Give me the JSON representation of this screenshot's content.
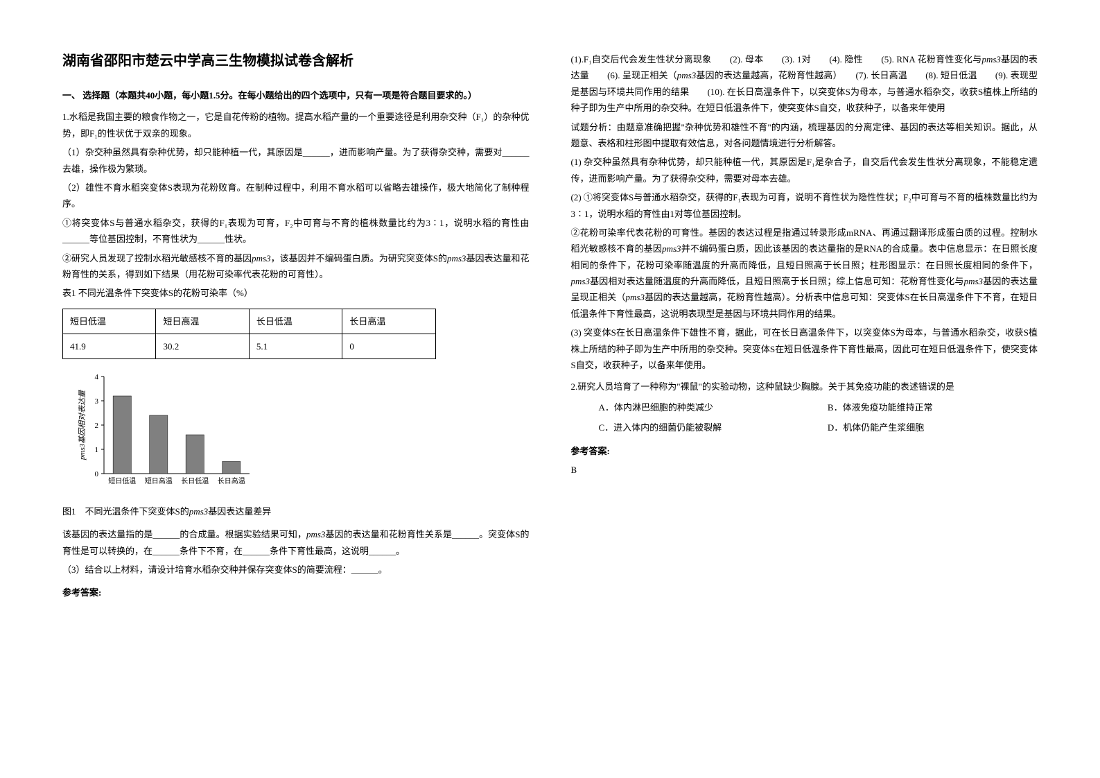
{
  "title": "湖南省邵阳市楚云中学高三生物模拟试卷含解析",
  "section1": "一、 选择题（本题共40小题，每小题1.5分。在每小题给出的四个选项中，只有一项是符合题目要求的。）",
  "q1": {
    "intro": "1.水稻是我国主要的粮食作物之一，它是自花传粉的植物。提高水稻产量的一个重要途径是利用杂交种（F₁）的杂种优势，即F₁的性状优于双亲的现象。",
    "p1": "（1）杂交种虽然具有杂种优势，却只能种植一代，其原因是______，进而影响产量。为了获得杂交种，需要对______去雄，操作极为繁琐。",
    "p2": "（2）雄性不育水稻突变体S表现为花粉败育。在制种过程中，利用不育水稻可以省略去雄操作，极大地简化了制种程序。",
    "p3": "①将突变体S与普通水稻杂交，获得的F₁表现为可育，F₂中可育与不育的植株数量比约为3∶1，说明水稻的育性由______等位基因控制，不育性状为______性状。",
    "p4a": "②研究人员发现了控制水稻光敏感核不育的基因",
    "p4_gene": "pms3",
    "p4b": "，该基因并不编码蛋白质。为研究突变体S的",
    "p4c": "基因表达量和花粉育性的关系，得到如下结果（用花粉可染率代表花粉的可育性）。",
    "table_caption": "表1 不同光温条件下突变体S的花粉可染率（%）",
    "table": {
      "headers": [
        "短日低温",
        "短日高温",
        "长日低温",
        "长日高温"
      ],
      "row": [
        "41.9",
        "30.2",
        "5.1",
        "0"
      ]
    },
    "chart": {
      "ylabel": "pms3基因相对表达量",
      "ymin": 0,
      "ymax": 4,
      "ytick": 1,
      "categories": [
        "短日低温",
        "短日高温",
        "长日低温",
        "长日高温"
      ],
      "values": [
        3.2,
        2.4,
        1.6,
        0.5
      ],
      "bar_color": "#808080",
      "axis_color": "#000000",
      "bg": "#ffffff",
      "font_size": 11
    },
    "fig_caption_a": "图1　不同光温条件下突变体S的",
    "fig_caption_b": "基因表达量差异",
    "p5a": "该基因的表达量指的是______的合成量。根据实验结果可知，",
    "p5b": "基因的表达量和花粉育性关系是______。突变体S的育性是可以转换的，在______条件下不育，在______条件下育性最高，这说明______。",
    "p6": "（3）结合以上材料，请设计培育水稻杂交种并保存突变体S的简要流程：______。",
    "ans_label": "参考答案:"
  },
  "right": {
    "ans1": "(1).F₁自交后代会发生性状分离现象　　(2). 母本　　(3). 1对　　(4). 隐性　　(5). RNA 花粉育性变化与",
    "ans1_g": "pms3",
    "ans1b": "基因的表达量　　(6). 呈现正相关（",
    "ans1c": "基因的表达量越高，花粉育性越高）　　(7). 长日高温　　(8). 短日低温　　(9). 表现型是基因与环境共同作用的结果　　(10). 在长日高温条件下，以突变体S为母本，与普通水稻杂交，收获S植株上所结的种子即为生产中所用的杂交种。在短日低温条件下，使突变体S自交，收获种子，以备来年使用",
    "analysis_intro": "试题分析：由题意准确把握\"杂种优势和雄性不育\"的内涵，梳理基因的分离定律、基因的表达等相关知识。据此，从题意、表格和柱形图中提取有效信息，对各问题情境进行分析解答。",
    "a1": "(1) 杂交种虽然具有杂种优势，却只能种植一代，其原因是F₁是杂合子，自交后代会发生性状分离现象，不能稳定遗传，进而影响产量。为了获得杂交种，需要对母本去雄。",
    "a2": "(2) ①将突变体S与普通水稻杂交，获得的F₁表现为可育，说明不育性状为隐性性状；F₂中可育与不育的植株数量比约为3∶1，说明水稻的育性由1对等位基因控制。",
    "a3a": "②花粉可染率代表花粉的可育性。基因的表达过程是指通过转录形成mRNA、再通过翻译形成蛋白质的过程。控制水稻光敏感核不育的基因",
    "a3b": "并不编码蛋白质，因此该基因的表达量指的是RNA的合成量。表中信息显示：在日照长度相同的条件下，花粉可染率随温度的升高而降低，且短日照高于长日照；柱形图显示：在日照长度相同的条件下，",
    "a3c": "基因相对表达量随温度的升高而降低，且短日照高于长日照；综上信息可知：花粉育性变化与",
    "a3d": "基因的表达量呈现正相关（",
    "a3e": "基因的表达量越高，花粉育性越高）。分析表中信息可知：突变体S在长日高温条件下不育，在短日低温条件下育性最高，这说明表现型是基因与环境共同作用的结果。",
    "a4": "(3) 突变体S在长日高温条件下雄性不育，据此，可在长日高温条件下，以突变体S为母本，与普通水稻杂交，收获S植株上所结的种子即为生产中所用的杂交种。突变体S在短日低温条件下育性最高，因此可在短日低温条件下，使突变体S自交，收获种子，以备来年使用。"
  },
  "q2": {
    "stem": "2.研究人员培育了一种称为\"裸鼠\"的实验动物，这种鼠缺少胸腺。关于其免疫功能的表述错误的是",
    "optA": "A．体内淋巴细胞的种类减少",
    "optB": "B．体液免疫功能维持正常",
    "optC": "C．进入体内的细菌仍能被裂解",
    "optD": "D．机体仍能产生浆细胞",
    "ans_label": "参考答案:",
    "ans": "B"
  }
}
